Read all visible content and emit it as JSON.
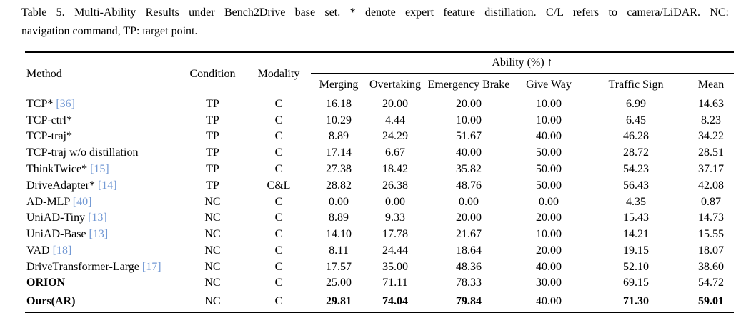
{
  "caption": {
    "line1": "Table 5.  Multi-Ability Results under Bench2Drive base set.  * denote expert feature distillation.  C/L refers to camera/LiDAR. NC:",
    "line2": "navigation command, TP: target point."
  },
  "table": {
    "citation_color": "#7399D4",
    "headers": {
      "method": "Method",
      "condition": "Condition",
      "modality": "Modality",
      "ability_group": "Ability (%) ↑",
      "ability_columns": [
        "Merging",
        "Overtaking",
        "Emergency Brake",
        "Give Way",
        "Traffic Sign",
        "Mean"
      ]
    },
    "groups": [
      {
        "name": "target-point-methods",
        "rows": [
          {
            "method": "TCP*",
            "citation": "[36]",
            "condition": "TP",
            "modality": "C",
            "values": [
              "16.18",
              "20.00",
              "20.00",
              "10.00",
              "6.99",
              "14.63"
            ]
          },
          {
            "method": "TCP-ctrl*",
            "citation": "",
            "condition": "TP",
            "modality": "C",
            "values": [
              "10.29",
              "4.44",
              "10.00",
              "10.00",
              "6.45",
              "8.23"
            ]
          },
          {
            "method": "TCP-traj*",
            "citation": "",
            "condition": "TP",
            "modality": "C",
            "values": [
              "8.89",
              "24.29",
              "51.67",
              "40.00",
              "46.28",
              "34.22"
            ]
          },
          {
            "method": "TCP-traj w/o distillation",
            "citation": "",
            "condition": "TP",
            "modality": "C",
            "values": [
              "17.14",
              "6.67",
              "40.00",
              "50.00",
              "28.72",
              "28.51"
            ]
          },
          {
            "method": "ThinkTwice*",
            "citation": "[15]",
            "condition": "TP",
            "modality": "C",
            "values": [
              "27.38",
              "18.42",
              "35.82",
              "50.00",
              "54.23",
              "37.17"
            ]
          },
          {
            "method": "DriveAdapter*",
            "citation": "[14]",
            "condition": "TP",
            "modality": "C&L",
            "values": [
              "28.82",
              "26.38",
              "48.76",
              "50.00",
              "56.43",
              "42.08"
            ]
          }
        ]
      },
      {
        "name": "navigation-command-methods",
        "rows": [
          {
            "method": "AD-MLP",
            "citation": "[40]",
            "condition": "NC",
            "modality": "C",
            "values": [
              "0.00",
              "0.00",
              "0.00",
              "0.00",
              "4.35",
              "0.87"
            ]
          },
          {
            "method": "UniAD-Tiny",
            "citation": "[13]",
            "condition": "NC",
            "modality": "C",
            "values": [
              "8.89",
              "9.33",
              "20.00",
              "20.00",
              "15.43",
              "14.73"
            ]
          },
          {
            "method": "UniAD-Base",
            "citation": "[13]",
            "condition": "NC",
            "modality": "C",
            "values": [
              "14.10",
              "17.78",
              "21.67",
              "10.00",
              "14.21",
              "15.55"
            ]
          },
          {
            "method": "VAD",
            "citation": "[18]",
            "condition": "NC",
            "modality": "C",
            "values": [
              "8.11",
              "24.44",
              "18.64",
              "20.00",
              "19.15",
              "18.07"
            ]
          },
          {
            "method": "DriveTransformer-Large",
            "citation": "[17]",
            "condition": "NC",
            "modality": "C",
            "values": [
              "17.57",
              "35.00",
              "48.36",
              "40.00",
              "52.10",
              "38.60"
            ]
          },
          {
            "method": "ORION",
            "citation": "",
            "bold_method": true,
            "condition": "NC",
            "modality": "C",
            "values": [
              "25.00",
              "71.11",
              "78.33",
              "30.00",
              "69.15",
              "54.72"
            ]
          }
        ]
      },
      {
        "name": "ours",
        "rows": [
          {
            "method": "Ours(AR)",
            "citation": "",
            "bold_method": true,
            "condition": "NC",
            "modality": "C",
            "values": [
              "29.81",
              "74.04",
              "79.84",
              "40.00",
              "71.30",
              "59.01"
            ],
            "bold_values": [
              true,
              true,
              true,
              false,
              true,
              true
            ]
          }
        ]
      }
    ]
  }
}
